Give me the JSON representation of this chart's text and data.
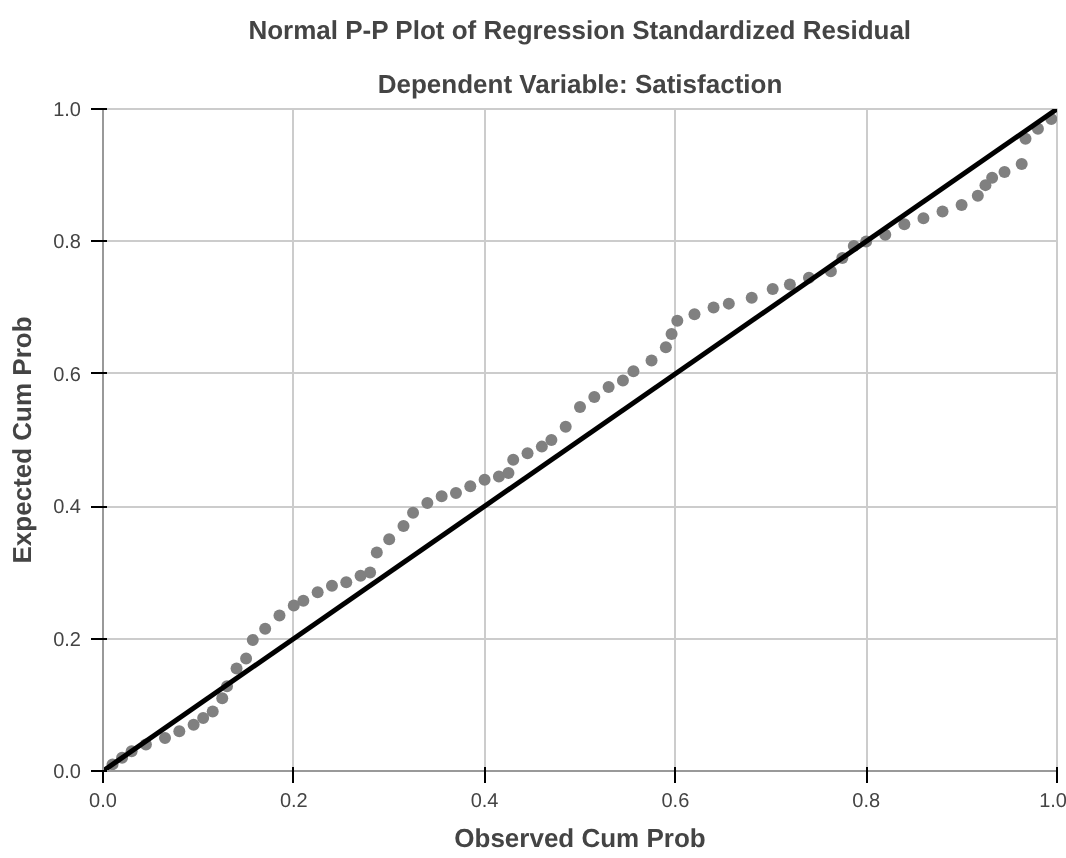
{
  "chart_data": {
    "type": "scatter",
    "title": "Normal P-P Plot of Regression Standardized Residual",
    "subtitle": "Dependent Variable: Satisfaction",
    "xlabel": "Observed Cum Prob",
    "ylabel": "Expected Cum Prob",
    "xlim": [
      0,
      1
    ],
    "ylim": [
      0,
      1
    ],
    "xticks": [
      {
        "value": 0,
        "label": "0.0"
      },
      0.2,
      0.4,
      0.6,
      0.8,
      {
        "value": 1,
        "label": "1.0"
      }
    ],
    "yticks": [
      {
        "value": 0,
        "label": "0.0"
      },
      0.2,
      0.4,
      0.6,
      0.8,
      {
        "value": 1,
        "label": "1.0"
      }
    ],
    "grid": true,
    "marker": "circle",
    "series": [
      {
        "color": "#808080",
        "x": [
          0.01,
          0.02,
          0.03,
          0.045,
          0.065,
          0.08,
          0.095,
          0.105,
          0.115,
          0.125,
          0.13,
          0.14,
          0.15,
          0.157,
          0.17,
          0.185,
          0.2,
          0.21,
          0.225,
          0.24,
          0.255,
          0.27,
          0.28,
          0.287,
          0.3,
          0.315,
          0.325,
          0.34,
          0.355,
          0.37,
          0.385,
          0.4,
          0.415,
          0.425,
          0.43,
          0.445,
          0.46,
          0.47,
          0.485,
          0.5,
          0.515,
          0.53,
          0.545,
          0.556,
          0.575,
          0.59,
          0.596,
          0.602,
          0.62,
          0.64,
          0.656,
          0.68,
          0.702,
          0.72,
          0.74,
          0.763,
          0.775,
          0.787,
          0.8,
          0.82,
          0.84,
          0.86,
          0.88,
          0.9,
          0.917,
          0.925,
          0.932,
          0.945,
          0.963,
          0.967,
          0.98,
          0.994
        ],
        "values": [
          0.01,
          0.02,
          0.03,
          0.04,
          0.05,
          0.06,
          0.07,
          0.08,
          0.09,
          0.11,
          0.128,
          0.155,
          0.17,
          0.198,
          0.215,
          0.235,
          0.25,
          0.257,
          0.27,
          0.28,
          0.285,
          0.295,
          0.3,
          0.33,
          0.35,
          0.37,
          0.39,
          0.405,
          0.415,
          0.42,
          0.43,
          0.44,
          0.445,
          0.45,
          0.47,
          0.48,
          0.49,
          0.5,
          0.52,
          0.55,
          0.565,
          0.58,
          0.59,
          0.604,
          0.62,
          0.64,
          0.66,
          0.68,
          0.69,
          0.7,
          0.706,
          0.715,
          0.728,
          0.735,
          0.745,
          0.755,
          0.775,
          0.793,
          0.8,
          0.81,
          0.826,
          0.835,
          0.845,
          0.855,
          0.869,
          0.885,
          0.896,
          0.905,
          0.917,
          0.955,
          0.97,
          0.985
        ]
      },
      {
        "type": "line",
        "marker": "none",
        "color": "#000000",
        "x": [
          0,
          1
        ],
        "values": [
          0,
          1
        ]
      }
    ]
  }
}
